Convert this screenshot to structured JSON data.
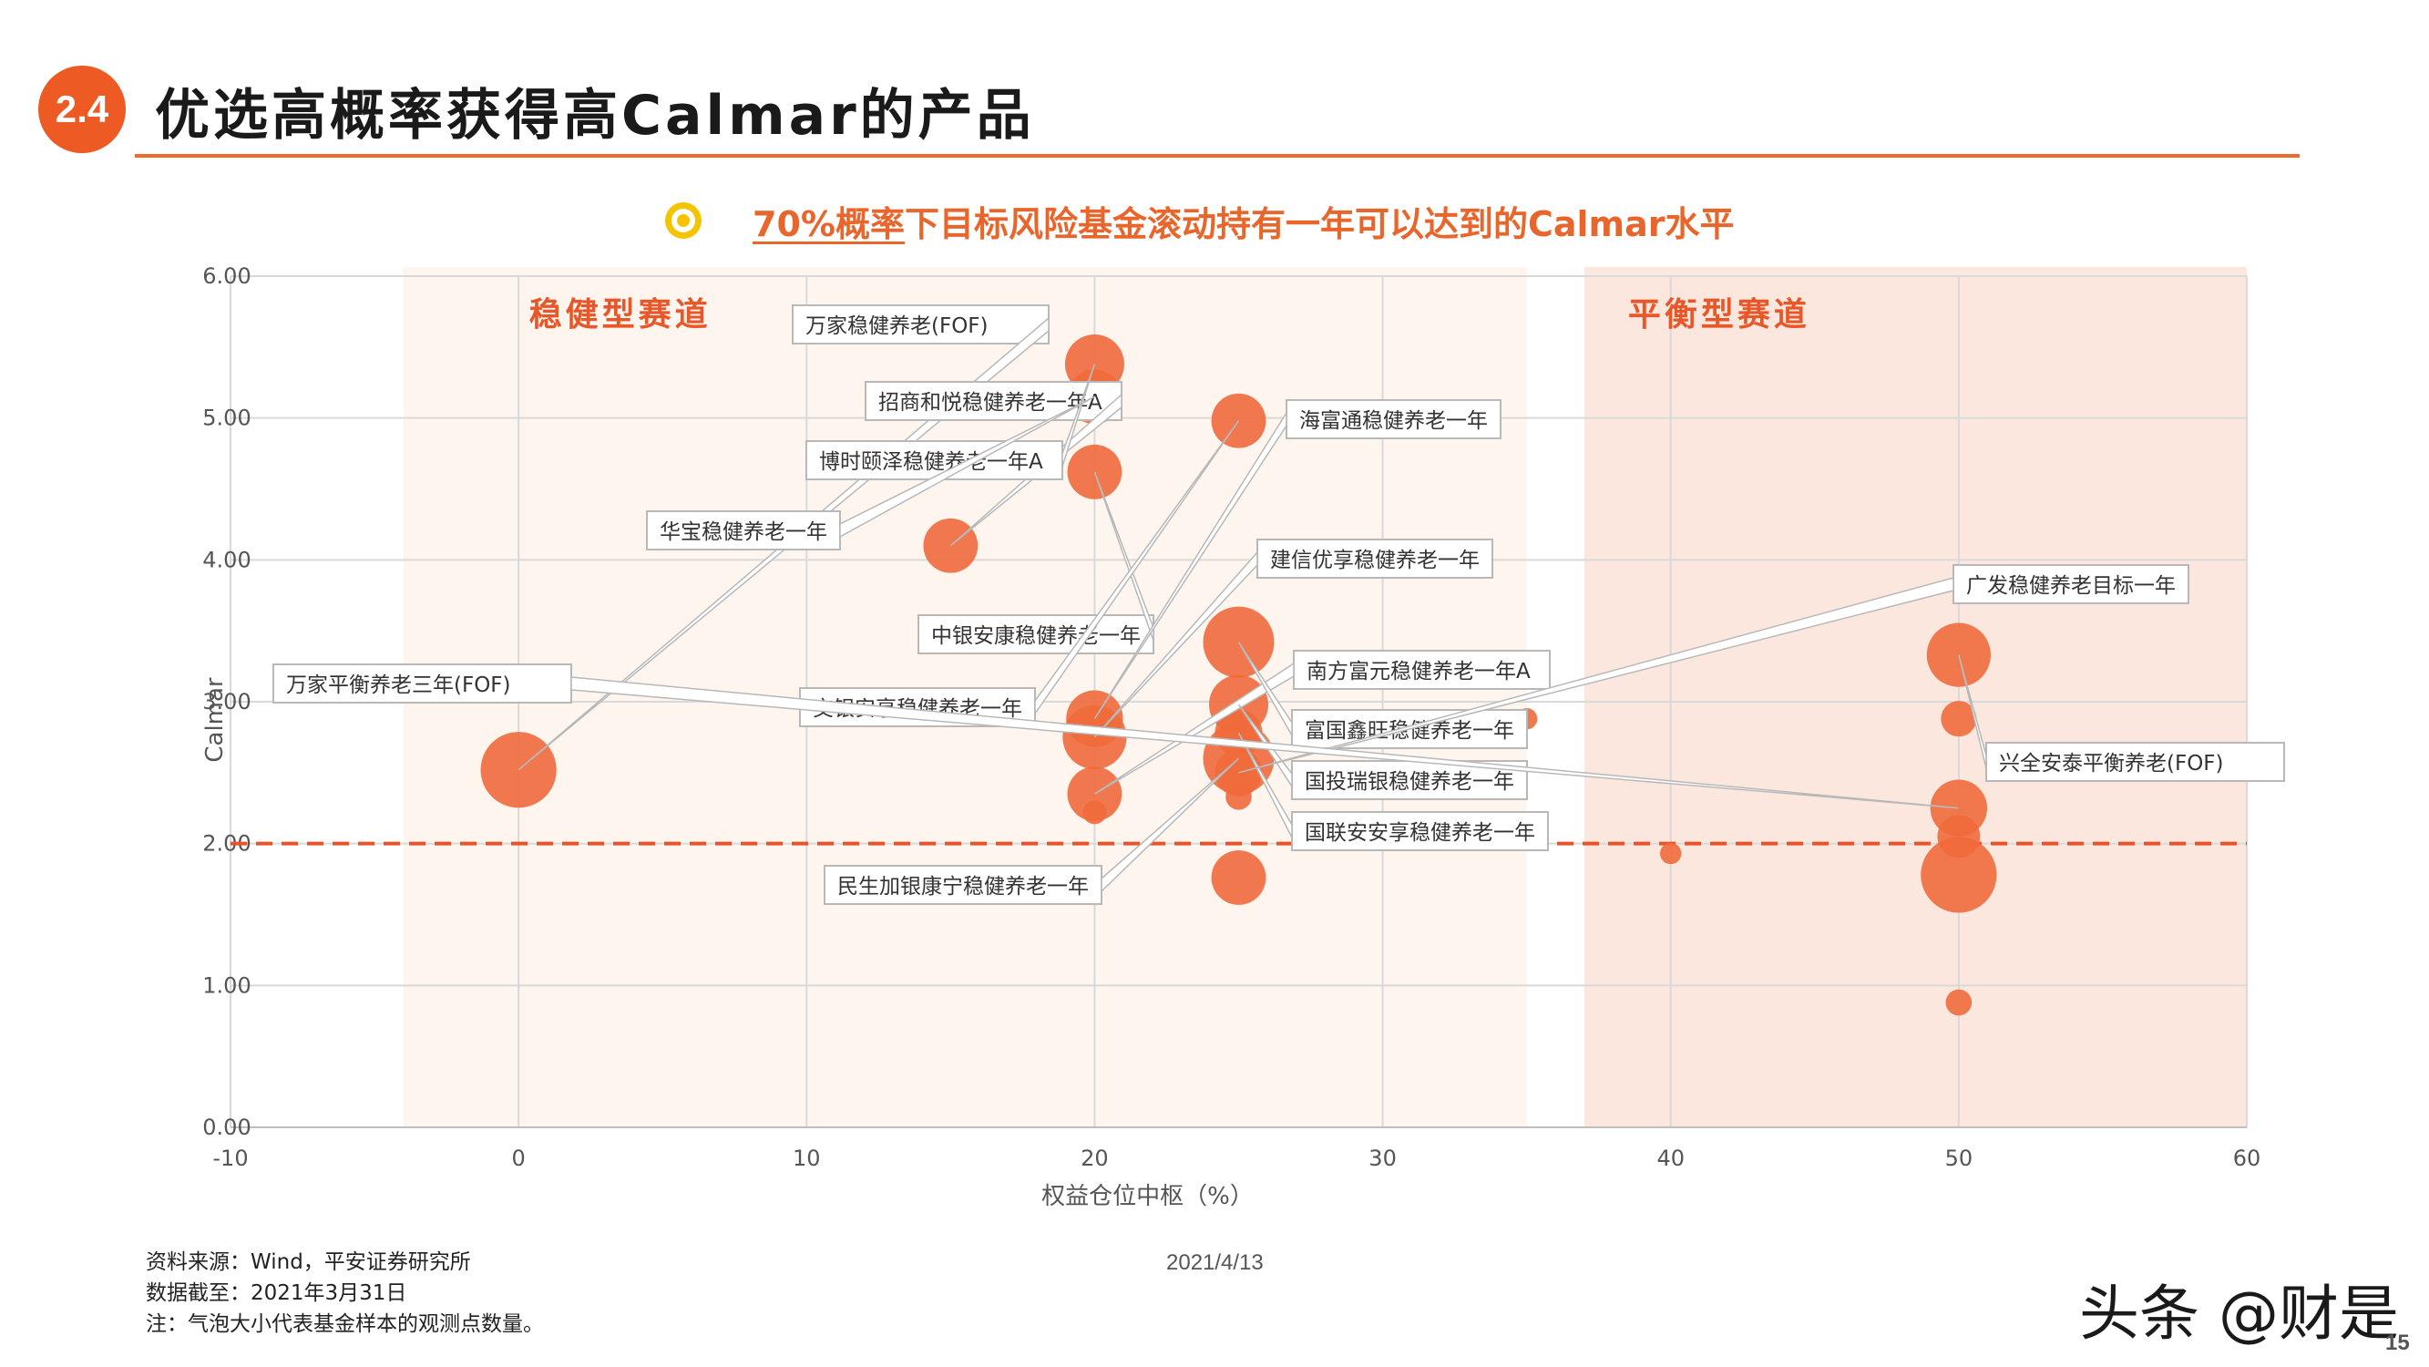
{
  "header": {
    "section_number": "2.4",
    "title": "优选高概率获得高Calmar的产品"
  },
  "subtitle": {
    "highlight": "70%概率",
    "rest": "下目标风险基金滚动持有一年可以达到的Calmar水平"
  },
  "chart_data": {
    "type": "scatter",
    "xlabel": "权益仓位中枢（%）",
    "ylabel": "Calmar",
    "xlim": [
      -10,
      60
    ],
    "ylim": [
      0,
      6
    ],
    "x_ticks": [
      "-10",
      "0",
      "10",
      "20",
      "30",
      "40",
      "50",
      "60"
    ],
    "y_ticks": [
      "0.00",
      "1.00",
      "2.00",
      "3.00",
      "4.00",
      "5.00",
      "6.00"
    ],
    "grid": true,
    "reference_line": {
      "y": 2.0,
      "style": "dashed",
      "color": "#e8532a"
    },
    "regions": [
      {
        "label": "稳健型赛道",
        "x_range": [
          -4,
          35
        ]
      },
      {
        "label": "平衡型赛道",
        "x_range": [
          37,
          60
        ]
      }
    ],
    "bubble_color": "#f06a3c",
    "series": [
      {
        "points": [
          {
            "x": 0,
            "y": 2.52,
            "size": 3.2,
            "label": "万家稳健养老(FOF)"
          },
          {
            "x": 15,
            "y": 4.1,
            "size": 2.3,
            "label": "招商和悦稳健养老一年A"
          },
          {
            "x": 20,
            "y": 5.38,
            "size": 2.5,
            "label": "博时颐泽稳健养老一年A"
          },
          {
            "x": 20,
            "y": 5.15,
            "size": 2.3,
            "label": "华宝稳健养老一年"
          },
          {
            "x": 20,
            "y": 4.62,
            "size": 2.3,
            "label": "中银安康稳健养老一年"
          },
          {
            "x": 20,
            "y": 2.88,
            "size": 2.4,
            "label": "海富通稳健养老一年"
          },
          {
            "x": 20,
            "y": 2.75,
            "size": 2.7,
            "label": "建信优享稳健养老一年"
          },
          {
            "x": 20,
            "y": 2.35,
            "size": 2.3,
            "label": "南方富元稳健养老一年A"
          },
          {
            "x": 20,
            "y": 2.22,
            "size": 1.0,
            "label": ""
          },
          {
            "x": 25,
            "y": 4.98,
            "size": 2.3,
            "label": "交银安享稳健养老一年"
          },
          {
            "x": 25,
            "y": 3.42,
            "size": 3.0,
            "label": "富国鑫旺稳健养老一年"
          },
          {
            "x": 25,
            "y": 2.98,
            "size": 2.5,
            "label": "国投瑞银稳健养老一年"
          },
          {
            "x": 25,
            "y": 2.78,
            "size": 2.0,
            "label": "国联安安享稳健养老一年"
          },
          {
            "x": 25,
            "y": 2.6,
            "size": 3.0,
            "label": "民生加银康宁稳健养老一年"
          },
          {
            "x": 25,
            "y": 2.5,
            "size": 2.0,
            "label": "广发稳健养老目标一年"
          },
          {
            "x": 25,
            "y": 2.33,
            "size": 1.1,
            "label": ""
          },
          {
            "x": 25,
            "y": 1.76,
            "size": 2.3,
            "label": ""
          },
          {
            "x": 35,
            "y": 2.88,
            "size": 0.9,
            "label": ""
          },
          {
            "x": 40,
            "y": 1.93,
            "size": 0.9,
            "label": ""
          },
          {
            "x": 50,
            "y": 3.33,
            "size": 2.7,
            "label": "兴全安泰平衡养老(FOF)"
          },
          {
            "x": 50,
            "y": 2.88,
            "size": 1.5,
            "label": ""
          },
          {
            "x": 50,
            "y": 2.25,
            "size": 2.4,
            "label": "万家平衡养老三年(FOF)"
          },
          {
            "x": 50,
            "y": 2.05,
            "size": 1.8,
            "label": ""
          },
          {
            "x": 50,
            "y": 1.78,
            "size": 3.2,
            "label": ""
          },
          {
            "x": 50,
            "y": 0.88,
            "size": 1.1,
            "label": ""
          }
        ]
      }
    ]
  },
  "footer": {
    "source": "资料来源：Wind，平安证券研究所",
    "data_date": "数据截至：2021年3月31日",
    "note": "注：气泡大小代表基金样本的观测点数量。"
  },
  "date": "2021/4/13",
  "watermark": "头条 @财是",
  "page_number": "15"
}
